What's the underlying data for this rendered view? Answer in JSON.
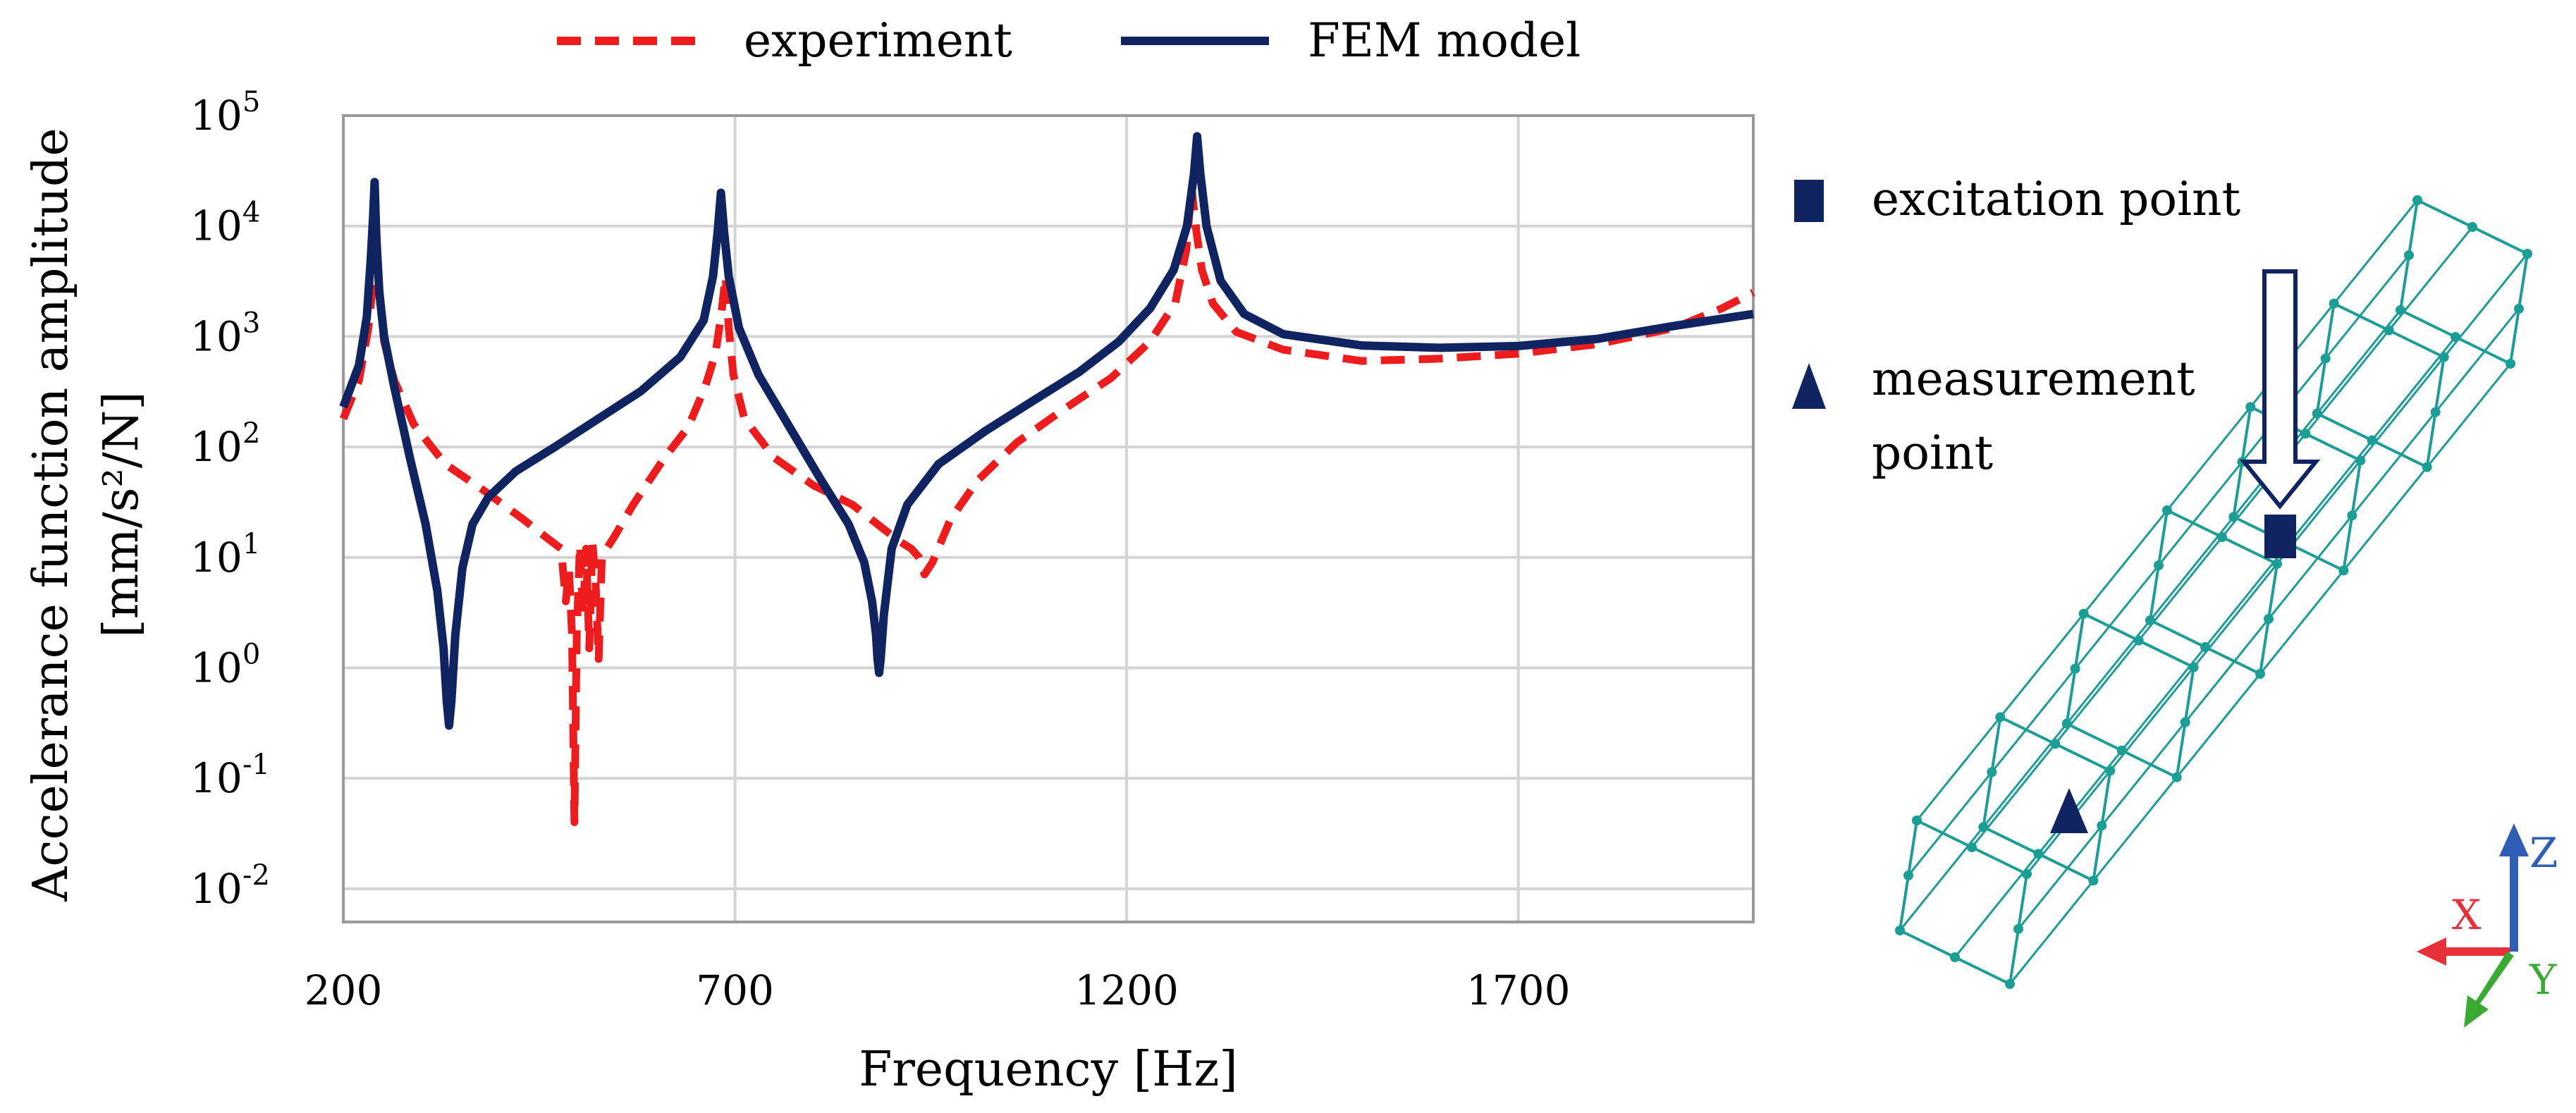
{
  "chart_data": {
    "type": "line",
    "title": "",
    "xlabel": "Frequency [Hz]",
    "ylabel_line1": "Accelerance function amplitude",
    "ylabel_line2": "[mm/s²/N]",
    "xscale": "linear",
    "yscale": "log",
    "xlim": [
      200,
      2000
    ],
    "ylim": [
      0.005,
      100000
    ],
    "grid": true,
    "x_ticks": [
      200,
      700,
      1200,
      1700
    ],
    "x_tick_labels": [
      "200",
      "700",
      "1200",
      "1700"
    ],
    "y_ticks": [
      {
        "value": 100000,
        "base": "10",
        "exp": "5"
      },
      {
        "value": 10000,
        "base": "10",
        "exp": "4"
      },
      {
        "value": 1000,
        "base": "10",
        "exp": "3"
      },
      {
        "value": 100,
        "base": "10",
        "exp": "2"
      },
      {
        "value": 10,
        "base": "10",
        "exp": "1"
      },
      {
        "value": 1,
        "base": "10",
        "exp": "0"
      },
      {
        "value": 0.1,
        "base": "10",
        "exp": "-1"
      },
      {
        "value": 0.01,
        "base": "10",
        "exp": "-2"
      }
    ],
    "legend_position": "top",
    "series": [
      {
        "name": "experiment",
        "color": "#ee1c1c",
        "style": "dashed",
        "points": [
          [
            200,
            180
          ],
          [
            220,
            400
          ],
          [
            232,
            1200
          ],
          [
            238,
            3000
          ],
          [
            242,
            10000
          ],
          [
            246,
            2500
          ],
          [
            252,
            900
          ],
          [
            265,
            400
          ],
          [
            290,
            160
          ],
          [
            330,
            70
          ],
          [
            380,
            40
          ],
          [
            430,
            22
          ],
          [
            460,
            15
          ],
          [
            478,
            12
          ],
          [
            484,
            4
          ],
          [
            488,
            8
          ],
          [
            492,
            2
          ],
          [
            495,
            0.04
          ],
          [
            498,
            2
          ],
          [
            502,
            13
          ],
          [
            506,
            3
          ],
          [
            510,
            12
          ],
          [
            514,
            1.5
          ],
          [
            518,
            14
          ],
          [
            522,
            6
          ],
          [
            526,
            1.2
          ],
          [
            530,
            10
          ],
          [
            536,
            12
          ],
          [
            545,
            15
          ],
          [
            570,
            30
          ],
          [
            610,
            80
          ],
          [
            640,
            150
          ],
          [
            662,
            350
          ],
          [
            675,
            700
          ],
          [
            682,
            1500
          ],
          [
            688,
            3500
          ],
          [
            692,
            1200
          ],
          [
            698,
            450
          ],
          [
            712,
            180
          ],
          [
            750,
            80
          ],
          [
            800,
            45
          ],
          [
            850,
            30
          ],
          [
            890,
            18
          ],
          [
            910,
            14
          ],
          [
            925,
            12
          ],
          [
            935,
            10
          ],
          [
            942,
            7
          ],
          [
            952,
            9
          ],
          [
            975,
            22
          ],
          [
            1010,
            50
          ],
          [
            1060,
            110
          ],
          [
            1120,
            220
          ],
          [
            1180,
            420
          ],
          [
            1230,
            900
          ],
          [
            1262,
            2000
          ],
          [
            1276,
            6000
          ],
          [
            1283,
            22000
          ],
          [
            1289,
            9000
          ],
          [
            1296,
            4000
          ],
          [
            1310,
            2000
          ],
          [
            1340,
            1100
          ],
          [
            1400,
            760
          ],
          [
            1500,
            600
          ],
          [
            1600,
            630
          ],
          [
            1700,
            700
          ],
          [
            1800,
            850
          ],
          [
            1900,
            1200
          ],
          [
            1960,
            1800
          ],
          [
            2000,
            2500
          ]
        ]
      },
      {
        "name": "FEM model",
        "color": "#0f2461",
        "style": "solid",
        "points": [
          [
            200,
            230
          ],
          [
            220,
            550
          ],
          [
            230,
            1500
          ],
          [
            235,
            5000
          ],
          [
            238,
            12000
          ],
          [
            240,
            25000
          ],
          [
            242,
            8000
          ],
          [
            246,
            2500
          ],
          [
            252,
            1000
          ],
          [
            265,
            350
          ],
          [
            285,
            80
          ],
          [
            305,
            20
          ],
          [
            320,
            5
          ],
          [
            328,
            1.5
          ],
          [
            332,
            0.5
          ],
          [
            335,
            0.3
          ],
          [
            338,
            0.5
          ],
          [
            343,
            2
          ],
          [
            352,
            8
          ],
          [
            365,
            20
          ],
          [
            385,
            35
          ],
          [
            420,
            60
          ],
          [
            470,
            100
          ],
          [
            520,
            170
          ],
          [
            580,
            320
          ],
          [
            630,
            650
          ],
          [
            660,
            1400
          ],
          [
            672,
            3500
          ],
          [
            678,
            9000
          ],
          [
            682,
            20000
          ],
          [
            686,
            9000
          ],
          [
            692,
            3500
          ],
          [
            705,
            1200
          ],
          [
            730,
            450
          ],
          [
            770,
            150
          ],
          [
            810,
            50
          ],
          [
            845,
            20
          ],
          [
            865,
            9
          ],
          [
            875,
            4
          ],
          [
            880,
            2
          ],
          [
            882,
            1.2
          ],
          [
            884,
            0.9
          ],
          [
            886,
            1.2
          ],
          [
            890,
            3
          ],
          [
            900,
            12
          ],
          [
            920,
            30
          ],
          [
            960,
            70
          ],
          [
            1020,
            140
          ],
          [
            1080,
            260
          ],
          [
            1140,
            480
          ],
          [
            1190,
            900
          ],
          [
            1230,
            1800
          ],
          [
            1260,
            4000
          ],
          [
            1277,
            10000
          ],
          [
            1286,
            30000
          ],
          [
            1290,
            65000
          ],
          [
            1294,
            30000
          ],
          [
            1302,
            10000
          ],
          [
            1320,
            3200
          ],
          [
            1350,
            1600
          ],
          [
            1400,
            1050
          ],
          [
            1500,
            830
          ],
          [
            1600,
            790
          ],
          [
            1700,
            820
          ],
          [
            1800,
            950
          ],
          [
            1900,
            1250
          ],
          [
            2000,
            1600
          ]
        ]
      }
    ]
  },
  "side_legend": {
    "excitation_label": "excitation point",
    "measurement_label_line1": "measurement",
    "measurement_label_line2": "point",
    "marker_color": "#0f2461"
  },
  "model_view": {
    "mesh_color": "#1a9e96",
    "axis_labels": {
      "x": "X",
      "y": "Y",
      "z": "Z"
    },
    "axis_colors": {
      "x": "#e8303a",
      "y": "#3aaa35",
      "z": "#2e5fb5"
    }
  }
}
